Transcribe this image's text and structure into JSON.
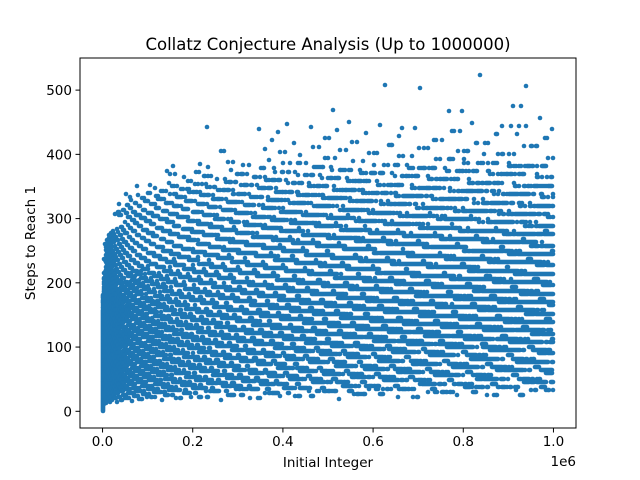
{
  "chart_data": {
    "type": "scatter",
    "title": "Collatz Conjecture Analysis (Up to 1000000)",
    "xlabel": "Initial Integer",
    "ylabel": "Steps to Reach 1",
    "x_offset_text": "1e6",
    "xlim": [
      -50000,
      1050000
    ],
    "ylim": [
      -26,
      550
    ],
    "x_ticks": [
      {
        "value": 0,
        "label": "0.0"
      },
      {
        "value": 200000,
        "label": "0.2"
      },
      {
        "value": 400000,
        "label": "0.4"
      },
      {
        "value": 600000,
        "label": "0.6"
      },
      {
        "value": 800000,
        "label": "0.8"
      },
      {
        "value": 1000000,
        "label": "1.0"
      }
    ],
    "y_ticks": [
      {
        "value": 0,
        "label": "0"
      },
      {
        "value": 100,
        "label": "100"
      },
      {
        "value": 200,
        "label": "200"
      },
      {
        "value": 300,
        "label": "300"
      },
      {
        "value": 400,
        "label": "400"
      },
      {
        "value": 500,
        "label": "500"
      }
    ],
    "grid": false,
    "legend": "none",
    "marker_color": "#1f77b4",
    "n_max": 1000000,
    "highlighted_points": [
      {
        "x": 837799,
        "y": 524
      },
      {
        "x": 626331,
        "y": 508
      },
      {
        "x": 939497,
        "y": 506
      },
      {
        "x": 704623,
        "y": 503
      },
      {
        "x": 910107,
        "y": 475
      },
      {
        "x": 511935,
        "y": 469
      },
      {
        "x": 230631,
        "y": 442
      },
      {
        "x": 410011,
        "y": 448
      }
    ]
  },
  "colors": {
    "marker": "#1f77b4",
    "axes": "#000000",
    "background": "#ffffff"
  }
}
